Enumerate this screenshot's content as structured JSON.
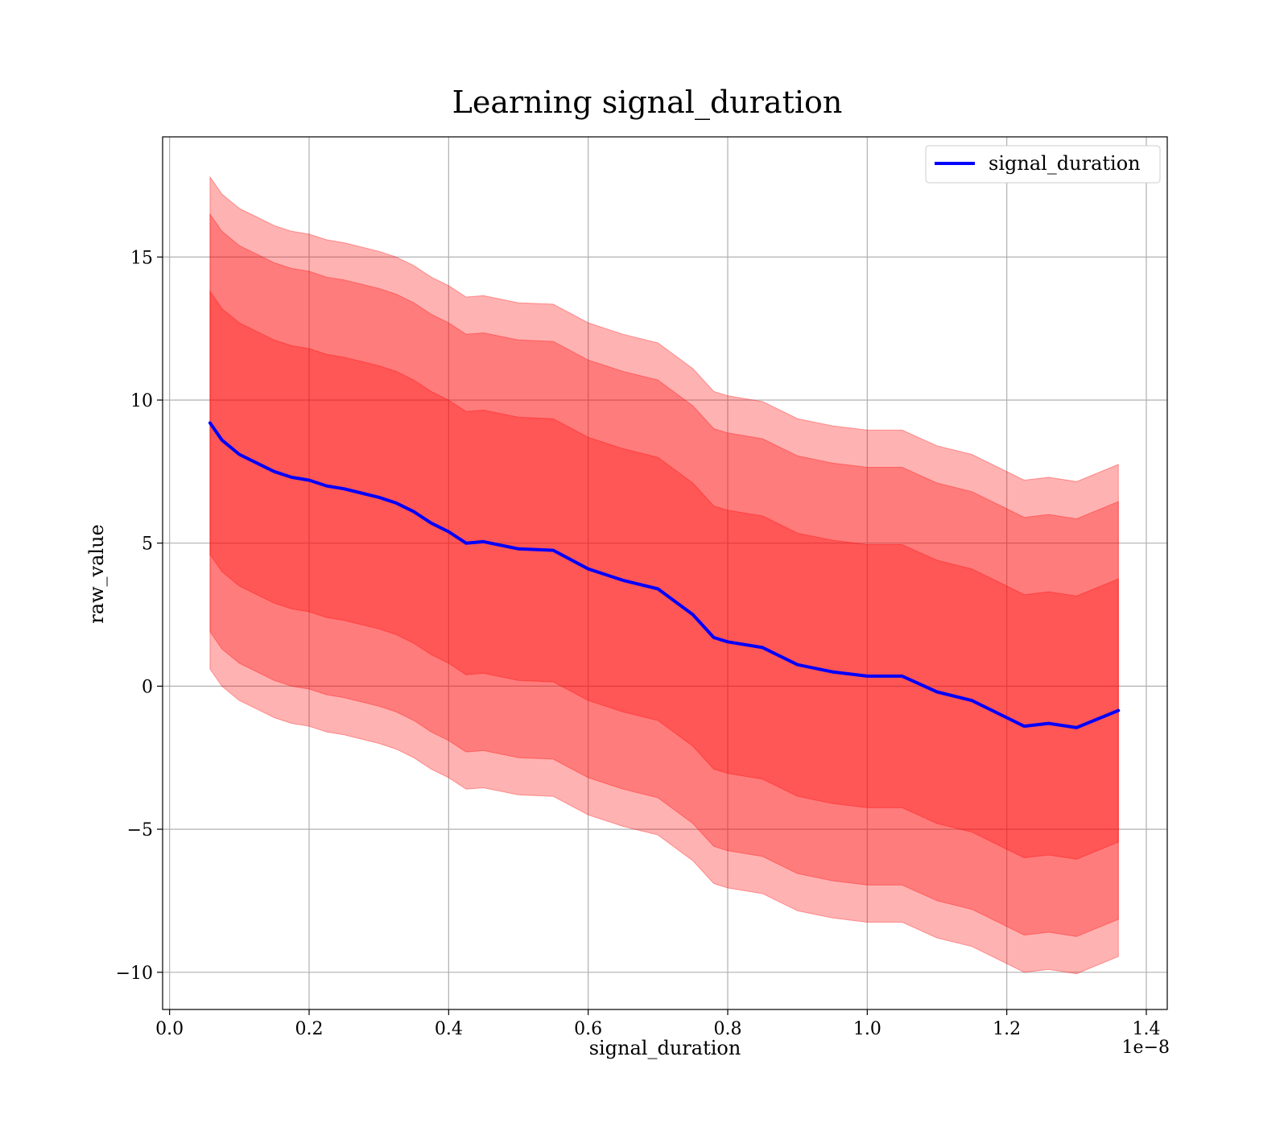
{
  "chart_data": {
    "type": "line",
    "title": "Learning signal_duration",
    "xlabel": "signal_duration",
    "ylabel": "raw_value",
    "x_offset_label": "1e−8",
    "xlim": [
      -0.01,
      1.43
    ],
    "ylim": [
      -11.3,
      19.2
    ],
    "x_ticks": [
      0.0,
      0.2,
      0.4,
      0.6,
      0.8,
      1.0,
      1.2,
      1.4
    ],
    "x_tick_labels": [
      "0.0",
      "0.2",
      "0.4",
      "0.6",
      "0.8",
      "1.0",
      "1.2",
      "1.4"
    ],
    "y_ticks": [
      -10,
      -5,
      0,
      5,
      10,
      15
    ],
    "y_tick_labels": [
      "−10",
      "−5",
      "0",
      "5",
      "10",
      "15"
    ],
    "grid": true,
    "legend_position": "top-right",
    "colors": {
      "line": "#0000ff",
      "band": "#ff0000",
      "band_alpha": 0.3,
      "grid": "#b0b0b0"
    },
    "x": [
      0.058,
      0.075,
      0.1,
      0.125,
      0.15,
      0.175,
      0.2,
      0.225,
      0.25,
      0.275,
      0.3,
      0.325,
      0.35,
      0.375,
      0.4,
      0.425,
      0.45,
      0.5,
      0.55,
      0.6,
      0.65,
      0.7,
      0.75,
      0.78,
      0.8,
      0.85,
      0.9,
      0.95,
      1.0,
      1.05,
      1.1,
      1.15,
      1.2,
      1.225,
      1.26,
      1.3,
      1.36
    ],
    "series": [
      {
        "name": "signal_duration",
        "values": [
          9.2,
          8.6,
          8.1,
          7.8,
          7.5,
          7.3,
          7.2,
          7.0,
          6.9,
          6.75,
          6.6,
          6.4,
          6.1,
          5.7,
          5.4,
          5.0,
          5.05,
          4.8,
          4.75,
          4.1,
          3.7,
          3.4,
          2.5,
          1.7,
          1.55,
          1.35,
          0.75,
          0.5,
          0.35,
          0.35,
          -0.2,
          -0.5,
          -1.1,
          -1.4,
          -1.3,
          -1.45,
          -0.85
        ]
      }
    ],
    "bands": [
      {
        "sigma": 1,
        "half_width": [
          4.6,
          4.6,
          4.6,
          4.6,
          4.6,
          4.6,
          4.6,
          4.6,
          4.6,
          4.6,
          4.6,
          4.6,
          4.6,
          4.6,
          4.6,
          4.6,
          4.6,
          4.6,
          4.6,
          4.6,
          4.6,
          4.6,
          4.6,
          4.6,
          4.6,
          4.6,
          4.6,
          4.6,
          4.6,
          4.6,
          4.6,
          4.6,
          4.6,
          4.6,
          4.6,
          4.6,
          4.6
        ]
      },
      {
        "sigma": 2,
        "half_width": [
          7.3,
          7.3,
          7.3,
          7.3,
          7.3,
          7.3,
          7.3,
          7.3,
          7.3,
          7.3,
          7.3,
          7.3,
          7.3,
          7.3,
          7.3,
          7.3,
          7.3,
          7.3,
          7.3,
          7.3,
          7.3,
          7.3,
          7.3,
          7.3,
          7.3,
          7.3,
          7.3,
          7.3,
          7.3,
          7.3,
          7.3,
          7.3,
          7.3,
          7.3,
          7.3,
          7.3,
          7.3
        ]
      },
      {
        "sigma": 3,
        "half_width": [
          8.6,
          8.6,
          8.6,
          8.6,
          8.6,
          8.6,
          8.6,
          8.6,
          8.6,
          8.6,
          8.6,
          8.6,
          8.6,
          8.6,
          8.6,
          8.6,
          8.6,
          8.6,
          8.6,
          8.6,
          8.6,
          8.6,
          8.6,
          8.6,
          8.6,
          8.6,
          8.6,
          8.6,
          8.6,
          8.6,
          8.6,
          8.6,
          8.6,
          8.6,
          8.6,
          8.6,
          8.6
        ]
      }
    ]
  }
}
